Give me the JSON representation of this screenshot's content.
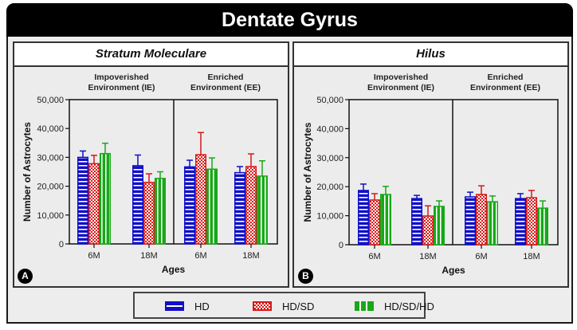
{
  "title": "Dentate Gyrus",
  "colors": {
    "HD": "#1010c8",
    "HD/SD": "#d81818",
    "HD/SD/HD": "#18a818",
    "frame": "#333333",
    "panel_bg": "#ececec"
  },
  "legend": {
    "items": [
      {
        "label": "HD",
        "pattern": "horizontal-stripes",
        "color": "#1010c8"
      },
      {
        "label": "HD/SD",
        "pattern": "checkerboard",
        "color": "#d81818"
      },
      {
        "label": "HD/SD/HD",
        "pattern": "vertical-stripes",
        "color": "#18a818"
      }
    ]
  },
  "panels": [
    {
      "badge": "A",
      "title": "Stratum Moleculare"
    },
    {
      "badge": "B",
      "title": "Hilus"
    }
  ],
  "chart_data": [
    {
      "type": "bar",
      "title": "Stratum Moleculare",
      "panel_label": "A",
      "xlabel": "Ages",
      "ylabel": "Number of Astrocytes",
      "ylim": [
        0,
        50000
      ],
      "yticks": [
        "0",
        "10,000",
        "20,000",
        "30,000",
        "40,000",
        "50,000"
      ],
      "groups": [
        "Impoverished Environment (IE)",
        "Enriched Environment (EE)"
      ],
      "categories": [
        "6M",
        "18M",
        "6M",
        "18M"
      ],
      "grid": false,
      "legend_position": "bottom",
      "series": [
        {
          "name": "HD",
          "values": [
            30000,
            27100,
            26700,
            24700
          ],
          "error": [
            2200,
            3700,
            2300,
            2100
          ]
        },
        {
          "name": "HD/SD",
          "values": [
            27800,
            21300,
            30900,
            26800
          ],
          "error": [
            2900,
            3000,
            7700,
            4400
          ]
        },
        {
          "name": "HD/SD/HD",
          "values": [
            31300,
            22700,
            25900,
            23500
          ],
          "error": [
            3600,
            2300,
            3900,
            5300
          ]
        }
      ]
    },
    {
      "type": "bar",
      "title": "Hilus",
      "panel_label": "B",
      "xlabel": "Ages",
      "ylabel": "Number of Astrocytes",
      "ylim": [
        0,
        50000
      ],
      "yticks": [
        "0",
        "10,000",
        "20,000",
        "30,000",
        "40,000",
        "50,000"
      ],
      "groups": [
        "Impoverished Environment (IE)",
        "Enriched Environment (EE)"
      ],
      "categories": [
        "6M",
        "18M",
        "6M",
        "18M"
      ],
      "grid": false,
      "legend_position": "bottom",
      "series": [
        {
          "name": "HD",
          "values": [
            18700,
            15900,
            16500,
            15900
          ],
          "error": [
            2200,
            1100,
            1600,
            1700
          ]
        },
        {
          "name": "HD/SD",
          "values": [
            15400,
            9900,
            17300,
            16200
          ],
          "error": [
            2200,
            3500,
            3000,
            2500
          ]
        },
        {
          "name": "HD/SD/HD",
          "values": [
            17300,
            13200,
            14800,
            12600
          ],
          "error": [
            2800,
            1900,
            2000,
            2500
          ]
        }
      ]
    }
  ]
}
